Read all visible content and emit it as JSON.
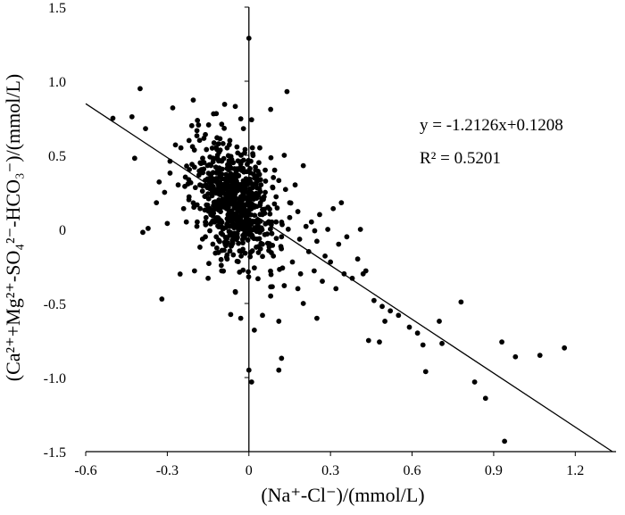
{
  "chart_data": {
    "type": "scatter",
    "xlim": [
      -0.6,
      1.35
    ],
    "ylim": [
      -1.5,
      1.5
    ],
    "x_ticks": [
      -0.6,
      -0.3,
      0,
      0.3,
      0.6,
      0.9,
      1.2
    ],
    "x_tick_labels": [
      "-0.6",
      "-0.3",
      "0",
      "0.3",
      "0.6",
      "0.9",
      "1.2"
    ],
    "y_ticks": [
      -1.5,
      -1.0,
      -0.5,
      0,
      0.5,
      1.0,
      1.5
    ],
    "y_tick_labels": [
      "-1.5",
      "-1.0",
      "-0.5",
      "0",
      "0.5",
      "1.0",
      "1.5"
    ],
    "xlabel": "(Na⁺-Cl⁻)/(mmol/L)",
    "ylabel": "(Ca²⁺+Mg²⁺-SO₄²⁻-HCO₃⁻)/(mmol/L)",
    "grid": false,
    "trendline": {
      "slope": -1.2126,
      "intercept": 0.1208,
      "equation_label": "y = -1.2126x+0.1208",
      "r2_label": "R² = 0.5201"
    },
    "points": [
      [
        -0.5,
        0.75
      ],
      [
        -0.43,
        0.76
      ],
      [
        -0.4,
        0.95
      ],
      [
        -0.38,
        0.68
      ],
      [
        -0.42,
        0.48
      ],
      [
        -0.39,
        -0.02
      ],
      [
        -0.33,
        0.32
      ],
      [
        -0.32,
        -0.47
      ],
      [
        -0.3,
        0.04
      ],
      [
        -0.29,
        0.46
      ],
      [
        -0.28,
        0.82
      ],
      [
        -0.27,
        0.57
      ],
      [
        -0.34,
        0.18
      ],
      [
        -0.31,
        0.25
      ],
      [
        -0.29,
        0.38
      ],
      [
        -0.26,
        0.3
      ],
      [
        -0.25,
        0.55
      ],
      [
        -0.24,
        0.14
      ],
      [
        -0.22,
        0.6
      ],
      [
        -0.21,
        0.7
      ],
      [
        -0.2,
        0.42
      ],
      [
        -0.19,
        0.05
      ],
      [
        -0.18,
        -0.12
      ],
      [
        -0.17,
        0.48
      ],
      [
        -0.16,
        0.64
      ],
      [
        -0.15,
        0.24
      ],
      [
        -0.14,
        0.36
      ],
      [
        -0.13,
        0.78
      ],
      [
        -0.12,
        -0.05
      ],
      [
        -0.11,
        0.52
      ],
      [
        -0.1,
        0.71
      ],
      [
        -0.09,
        0.18
      ],
      [
        -0.08,
        -0.2
      ],
      [
        -0.07,
        0.6
      ],
      [
        -0.06,
        0.3
      ],
      [
        -0.05,
        0.83
      ],
      [
        -0.04,
        0.05
      ],
      [
        -0.03,
        0.44
      ],
      [
        -0.02,
        0.68
      ],
      [
        -0.01,
        0.12
      ],
      [
        0.0,
        1.29
      ],
      [
        0.01,
        0.74
      ],
      [
        0.02,
        -0.26
      ],
      [
        0.03,
        0.28
      ],
      [
        0.04,
        0.55
      ],
      [
        0.05,
        -0.1
      ],
      [
        0.06,
        0.4
      ],
      [
        0.07,
        0.15
      ],
      [
        0.08,
        0.81
      ],
      [
        0.09,
        -0.18
      ],
      [
        0.1,
        0.22
      ],
      [
        0.11,
        0.33
      ],
      [
        0.12,
        -0.05
      ],
      [
        0.13,
        0.5
      ],
      [
        0.14,
        0.93
      ],
      [
        0.15,
        0.08
      ],
      [
        0.16,
        -0.22
      ],
      [
        0.17,
        0.3
      ],
      [
        0.18,
        0.12
      ],
      [
        0.19,
        -0.3
      ],
      [
        0.2,
        0.43
      ],
      [
        0.21,
        0.02
      ],
      [
        0.22,
        -0.15
      ],
      [
        0.23,
        0.05
      ],
      [
        0.24,
        -0.28
      ],
      [
        0.25,
        -0.08
      ],
      [
        0.26,
        0.1
      ],
      [
        0.27,
        -0.35
      ],
      [
        0.28,
        -0.18
      ],
      [
        0.29,
        0.0
      ],
      [
        0.3,
        -0.22
      ],
      [
        0.31,
        0.14
      ],
      [
        0.32,
        -0.4
      ],
      [
        0.33,
        -0.1
      ],
      [
        0.34,
        0.18
      ],
      [
        0.35,
        -0.3
      ],
      [
        0.36,
        -0.05
      ],
      [
        0.38,
        -0.33
      ],
      [
        0.4,
        -0.2
      ],
      [
        0.41,
        0.0
      ],
      [
        0.42,
        -0.3
      ],
      [
        0.43,
        -0.28
      ],
      [
        0.44,
        -0.75
      ],
      [
        0.46,
        -0.48
      ],
      [
        0.48,
        -0.76
      ],
      [
        0.49,
        -0.52
      ],
      [
        0.5,
        -0.62
      ],
      [
        0.52,
        -0.55
      ],
      [
        0.55,
        -0.58
      ],
      [
        0.59,
        -0.66
      ],
      [
        0.62,
        -0.7
      ],
      [
        0.64,
        -0.78
      ],
      [
        0.65,
        -0.96
      ],
      [
        0.7,
        -0.62
      ],
      [
        0.71,
        -0.77
      ],
      [
        0.78,
        -0.49
      ],
      [
        0.83,
        -1.03
      ],
      [
        0.87,
        -1.14
      ],
      [
        0.93,
        -0.76
      ],
      [
        0.94,
        -1.43
      ],
      [
        0.98,
        -0.86
      ],
      [
        1.07,
        -0.85
      ],
      [
        1.16,
        -0.8
      ],
      [
        0.11,
        -0.95
      ],
      [
        0.01,
        -1.03
      ],
      [
        0.0,
        -0.95
      ],
      [
        0.12,
        -0.87
      ],
      [
        -0.03,
        -0.6
      ],
      [
        0.02,
        -0.68
      ],
      [
        0.05,
        -0.58
      ],
      [
        0.11,
        -0.62
      ],
      [
        -0.1,
        -0.28
      ],
      [
        -0.15,
        -0.33
      ],
      [
        -0.05,
        -0.42
      ],
      [
        0.08,
        -0.45
      ],
      [
        0.13,
        -0.38
      ],
      [
        0.2,
        -0.5
      ],
      [
        0.25,
        -0.6
      ],
      [
        0.18,
        -0.4
      ],
      [
        -0.2,
        -0.28
      ],
      [
        -0.22,
        0.22
      ],
      [
        -0.23,
        0.05
      ],
      [
        -0.18,
        0.3
      ],
      [
        -0.16,
        -0.05
      ],
      [
        -0.14,
        0.1
      ],
      [
        -0.12,
        0.48
      ],
      [
        -0.08,
        0.55
      ],
      [
        -0.07,
        0.02
      ],
      [
        -0.03,
        0.22
      ],
      [
        0.02,
        0.15
      ],
      [
        0.04,
        -0.02
      ],
      [
        0.06,
        0.25
      ],
      [
        0.09,
        0.35
      ],
      [
        0.1,
        0.05
      ],
      [
        0.15,
        0.18
      ]
    ]
  }
}
